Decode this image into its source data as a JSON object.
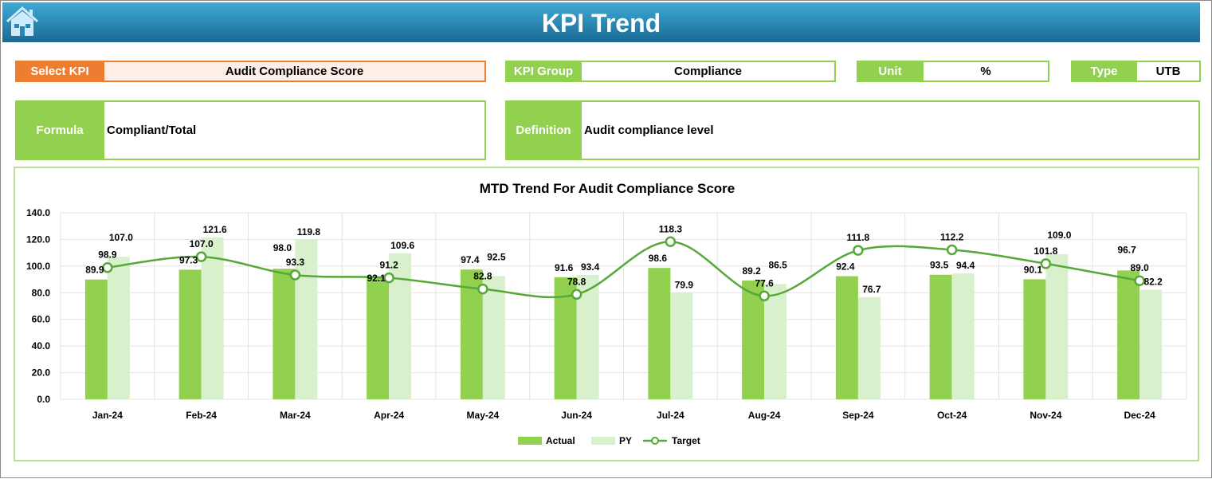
{
  "header": {
    "title": "KPI Trend",
    "home_icon": "home-icon"
  },
  "kpi": {
    "select_label": "Select KPI",
    "select_value": "Audit Compliance Score",
    "group_label": "KPI Group",
    "group_value": "Compliance",
    "unit_label": "Unit",
    "unit_value": "%",
    "type_label": "Type",
    "type_value": "UTB",
    "formula_label": "Formula",
    "formula_value": "Compliant/Total",
    "definition_label": "Definition",
    "definition_value": "Audit compliance level"
  },
  "colors": {
    "header": "#1f7ea8",
    "select": "#ed7d31",
    "green": "#92d050",
    "actual": "#92d050",
    "py": "#d8f0cc",
    "target": "#56a838"
  },
  "chart_data": {
    "type": "bar",
    "title": "MTD Trend For Audit Compliance Score",
    "categories": [
      "Jan-24",
      "Feb-24",
      "Mar-24",
      "Apr-24",
      "May-24",
      "Jun-24",
      "Jul-24",
      "Aug-24",
      "Sep-24",
      "Oct-24",
      "Nov-24",
      "Dec-24"
    ],
    "ylim": [
      0,
      140
    ],
    "yticks": [
      "0.0",
      "20.0",
      "40.0",
      "60.0",
      "80.0",
      "100.0",
      "120.0",
      "140.0"
    ],
    "grid": true,
    "legend": "bottom",
    "series": [
      {
        "name": "Actual",
        "type": "bar",
        "values": [
          89.9,
          97.3,
          98.0,
          92.1,
          97.4,
          91.6,
          98.6,
          89.2,
          92.4,
          93.5,
          90.1,
          96.7
        ]
      },
      {
        "name": "PY",
        "type": "bar",
        "values": [
          107.0,
          121.6,
          119.8,
          109.6,
          92.5,
          93.4,
          79.9,
          86.5,
          76.7,
          94.4,
          109.0,
          82.2
        ]
      },
      {
        "name": "Target",
        "type": "line",
        "values": [
          98.9,
          107.0,
          93.3,
          91.2,
          82.8,
          78.8,
          118.3,
          77.6,
          111.8,
          112.2,
          101.8,
          89.0
        ]
      }
    ]
  }
}
